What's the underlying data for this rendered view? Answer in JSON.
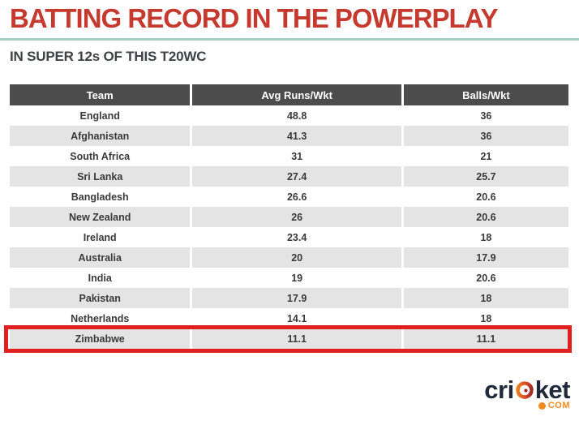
{
  "header": {
    "title": "BATTING RECORD IN THE POWERPLAY",
    "subtitle": "IN SUPER 12s OF THIS T20WC"
  },
  "chart_data": {
    "type": "table",
    "title": "BATTING RECORD IN THE POWERPLAY",
    "subtitle": "IN SUPER 12s OF THIS T20WC",
    "columns": [
      "Team",
      "Avg Runs/Wkt",
      "Balls/Wkt"
    ],
    "rows": [
      [
        "England",
        48.8,
        36
      ],
      [
        "Afghanistan",
        41.3,
        36
      ],
      [
        "South Africa",
        31,
        21
      ],
      [
        "Sri Lanka",
        27.4,
        25.7
      ],
      [
        "Bangladesh",
        26.6,
        20.6
      ],
      [
        "New Zealand",
        26,
        20.6
      ],
      [
        "Ireland",
        23.4,
        18
      ],
      [
        "Australia",
        20,
        17.9
      ],
      [
        "India",
        19,
        20.6
      ],
      [
        "Pakistan",
        17.9,
        18
      ],
      [
        "Netherlands",
        14.1,
        18
      ],
      [
        "Zimbabwe",
        11.1,
        11.1
      ]
    ],
    "highlighted_row": "Zimbabwe",
    "highlighted_row_index": 11,
    "layout": {
      "zebra_striping": true,
      "header_style": "dark"
    }
  },
  "logo": {
    "brand_pre": "cri",
    "brand_post": "ket",
    "ball_icon": "cricket-ball-icon",
    "tld": "COM"
  },
  "colors": {
    "title_red": "#c6392f",
    "divider_green": "#a6cebc",
    "header_bg": "#4c4c4c",
    "row_alt_bg": "#e4e4e4",
    "highlight_red": "#e01f1f",
    "logo_navy": "#1e2a3a",
    "logo_orange": "#f28a1e"
  }
}
